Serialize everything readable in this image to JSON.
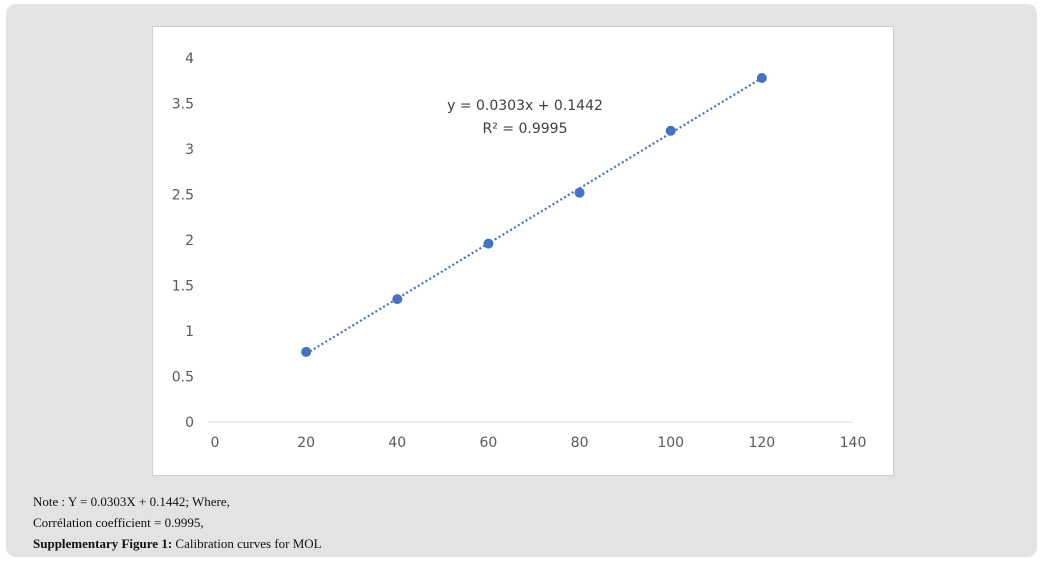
{
  "chart_data": {
    "type": "scatter",
    "x": [
      20,
      40,
      60,
      80,
      100,
      120
    ],
    "y": [
      0.77,
      1.35,
      1.96,
      2.52,
      3.2,
      3.78
    ],
    "xlim": [
      0,
      140
    ],
    "ylim": [
      0,
      4
    ],
    "x_ticks": [
      "0",
      "20",
      "40",
      "60",
      "80",
      "100",
      "120",
      "140"
    ],
    "y_ticks": [
      "0",
      "0.5",
      "1",
      "1.5",
      "2",
      "2.5",
      "3",
      "3.5",
      "4"
    ],
    "grid": false,
    "marker_color": "#4472c4",
    "trendline": {
      "kind": "linear",
      "style": "dotted",
      "color": "#4472c4",
      "slope": 0.0303,
      "intercept": 0.1442,
      "x_range": [
        20,
        120
      ],
      "equation": "y = 0.0303x + 0.1442",
      "r_squared": "R² = 0.9995"
    }
  },
  "caption": {
    "note": "Note : Y = 0.0303X + 0.1442; Where,",
    "correlation": "Corrélation coefficient = 0.9995,",
    "figure_label": "Supplementary Figure 1:",
    "figure_text": " Calibration curves for MOL"
  }
}
